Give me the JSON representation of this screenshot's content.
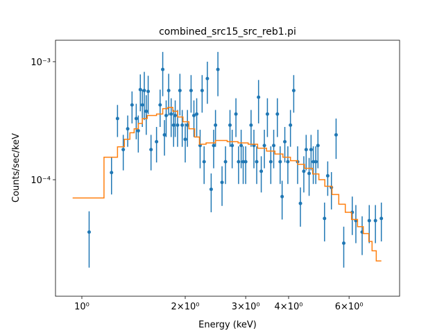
{
  "chart_data": {
    "type": "scatter",
    "title": "combined_src15_src_reb1.pi",
    "xlabel": "Energy (keV)",
    "ylabel": "Counts/sec/keV",
    "xlog": true,
    "ylog": true,
    "xlim": [
      0.838,
      8.42
    ],
    "ylim": [
      1.03e-05,
      0.00152
    ],
    "xticks": [
      {
        "value": 1,
        "label": "10⁰"
      },
      {
        "value": 2,
        "label": "2×10⁰"
      },
      {
        "value": 3,
        "label": "3×10⁰"
      },
      {
        "value": 4,
        "label": "4×10⁰"
      },
      {
        "value": 6,
        "label": "6×10⁰"
      }
    ],
    "yticks": [
      {
        "value": 0.0001,
        "label": "10⁻⁴"
      },
      {
        "value": 0.001,
        "label": "10⁻³"
      }
    ],
    "series": [
      {
        "type": "errorbar",
        "color": "#1f77b4",
        "x": [
          1.05,
          1.22,
          1.27,
          1.32,
          1.36,
          1.4,
          1.44,
          1.46,
          1.48,
          1.5,
          1.52,
          1.54,
          1.56,
          1.59,
          1.65,
          1.69,
          1.72,
          1.74,
          1.76,
          1.79,
          1.82,
          1.85,
          1.87,
          1.9,
          1.93,
          1.96,
          2.0,
          2.03,
          2.08,
          2.12,
          2.16,
          2.21,
          2.24,
          2.27,
          2.32,
          2.38,
          2.42,
          2.45,
          2.49,
          2.56,
          2.62,
          2.7,
          2.74,
          2.81,
          2.86,
          2.91,
          2.95,
          3.0,
          3.11,
          3.17,
          3.23,
          3.27,
          3.33,
          3.4,
          3.47,
          3.55,
          3.62,
          3.71,
          3.78,
          3.83,
          3.9,
          3.98,
          4.05,
          4.14,
          4.25,
          4.33,
          4.43,
          4.5,
          4.59,
          4.65,
          4.72,
          4.8,
          4.87,
          5.09,
          5.2,
          5.33,
          5.5,
          5.79,
          6.13,
          6.28,
          6.55,
          6.87,
          7.16,
          7.45
        ],
        "values": [
          3.6e-05,
          0.000115,
          0.00033,
          0.00018,
          0.00027,
          0.00043,
          0.00033,
          0.00026,
          0.00058,
          0.00043,
          0.00057,
          0.00038,
          0.00056,
          0.00018,
          0.00021,
          0.00043,
          0.00086,
          0.00024,
          0.00035,
          0.00057,
          0.00036,
          0.00029,
          0.00035,
          0.00029,
          0.00057,
          0.00029,
          0.00022,
          0.00029,
          0.00057,
          0.00035,
          0.00036,
          0.000195,
          0.00057,
          0.000142,
          0.00072,
          8.3e-05,
          0.000195,
          0.00029,
          0.00086,
          9.5e-05,
          0.000142,
          0.00029,
          0.000195,
          0.00036,
          0.000142,
          0.000195,
          0.000142,
          0.000142,
          0.00029,
          0.000195,
          0.000142,
          0.0005,
          0.000118,
          0.000195,
          0.00036,
          0.000142,
          0.000195,
          0.00036,
          0.000142,
          7.2e-05,
          0.00021,
          0.000142,
          0.00029,
          0.00057,
          0.000142,
          6.3e-05,
          0.000118,
          0.00018,
          0.000113,
          0.00018,
          0.000142,
          0.000142,
          0.000195,
          4.7e-05,
          0.000108,
          8.6e-05,
          0.00024,
          2.9e-05,
          5.3e-05,
          4.5e-05,
          3.6e-05,
          4.5e-05,
          4.5e-05,
          4.7e-05
        ],
        "errors": [
          1.8e-05,
          4e-05,
          0.0001,
          6e-05,
          8e-05,
          0.00013,
          0.00011,
          9e-05,
          0.0002,
          0.00015,
          0.00025,
          0.00014,
          0.0002,
          6e-05,
          7e-05,
          0.00015,
          0.00035,
          8e-05,
          0.00012,
          0.00022,
          0.00013,
          0.0001,
          0.00012,
          0.0001,
          0.00022,
          0.0001,
          8e-05,
          0.0001,
          0.0002,
          0.00012,
          0.00013,
          7e-05,
          0.0002,
          5e-05,
          0.00028,
          3e-05,
          7e-05,
          0.0001,
          0.00035,
          3.5e-05,
          5e-05,
          0.0001,
          7e-05,
          0.00013,
          5e-05,
          7e-05,
          5e-05,
          5e-05,
          0.0001,
          7e-05,
          5e-05,
          0.0002,
          4e-05,
          7e-05,
          0.00013,
          5e-05,
          7e-05,
          0.00013,
          5e-05,
          2.6e-05,
          7e-05,
          5e-05,
          0.0001,
          0.0002,
          5e-05,
          2.3e-05,
          4e-05,
          6e-05,
          4e-05,
          6e-05,
          5e-05,
          5e-05,
          7e-05,
          1.7e-05,
          3.5e-05,
          3e-05,
          9e-05,
          1.1e-05,
          1.9e-05,
          1.6e-05,
          1.3e-05,
          1.6e-05,
          1.6e-05,
          1.7e-05
        ]
      },
      {
        "type": "step",
        "color": "#ff7f0e",
        "x": [
          0.94,
          1.16,
          1.27,
          1.33,
          1.38,
          1.42,
          1.46,
          1.5,
          1.55,
          1.65,
          1.72,
          1.78,
          1.84,
          1.9,
          1.97,
          2.05,
          2.13,
          2.2,
          2.3,
          2.45,
          2.65,
          2.85,
          3.05,
          3.25,
          3.45,
          3.65,
          3.85,
          4.05,
          4.25,
          4.45,
          4.7,
          4.9,
          5.1,
          5.35,
          5.6,
          5.85,
          6.1,
          6.35,
          6.6,
          6.85,
          7.0,
          7.2,
          7.45
        ],
        "values": [
          7e-05,
          0.000155,
          0.00019,
          0.00022,
          0.00025,
          0.00027,
          0.0003,
          0.00033,
          0.00035,
          0.00036,
          0.0004,
          0.00041,
          0.00038,
          0.00034,
          0.00031,
          0.00027,
          0.00023,
          0.0002,
          0.000205,
          0.000215,
          0.00021,
          0.000205,
          0.0002,
          0.000185,
          0.000175,
          0.000165,
          0.000155,
          0.000145,
          0.000135,
          0.000125,
          0.000112,
          0.0001,
          8.8e-05,
          7.5e-05,
          6.2e-05,
          5.3e-05,
          4.6e-05,
          4e-05,
          3.5e-05,
          3e-05,
          2.5e-05,
          2.05e-05,
          2.05e-05
        ]
      }
    ]
  }
}
